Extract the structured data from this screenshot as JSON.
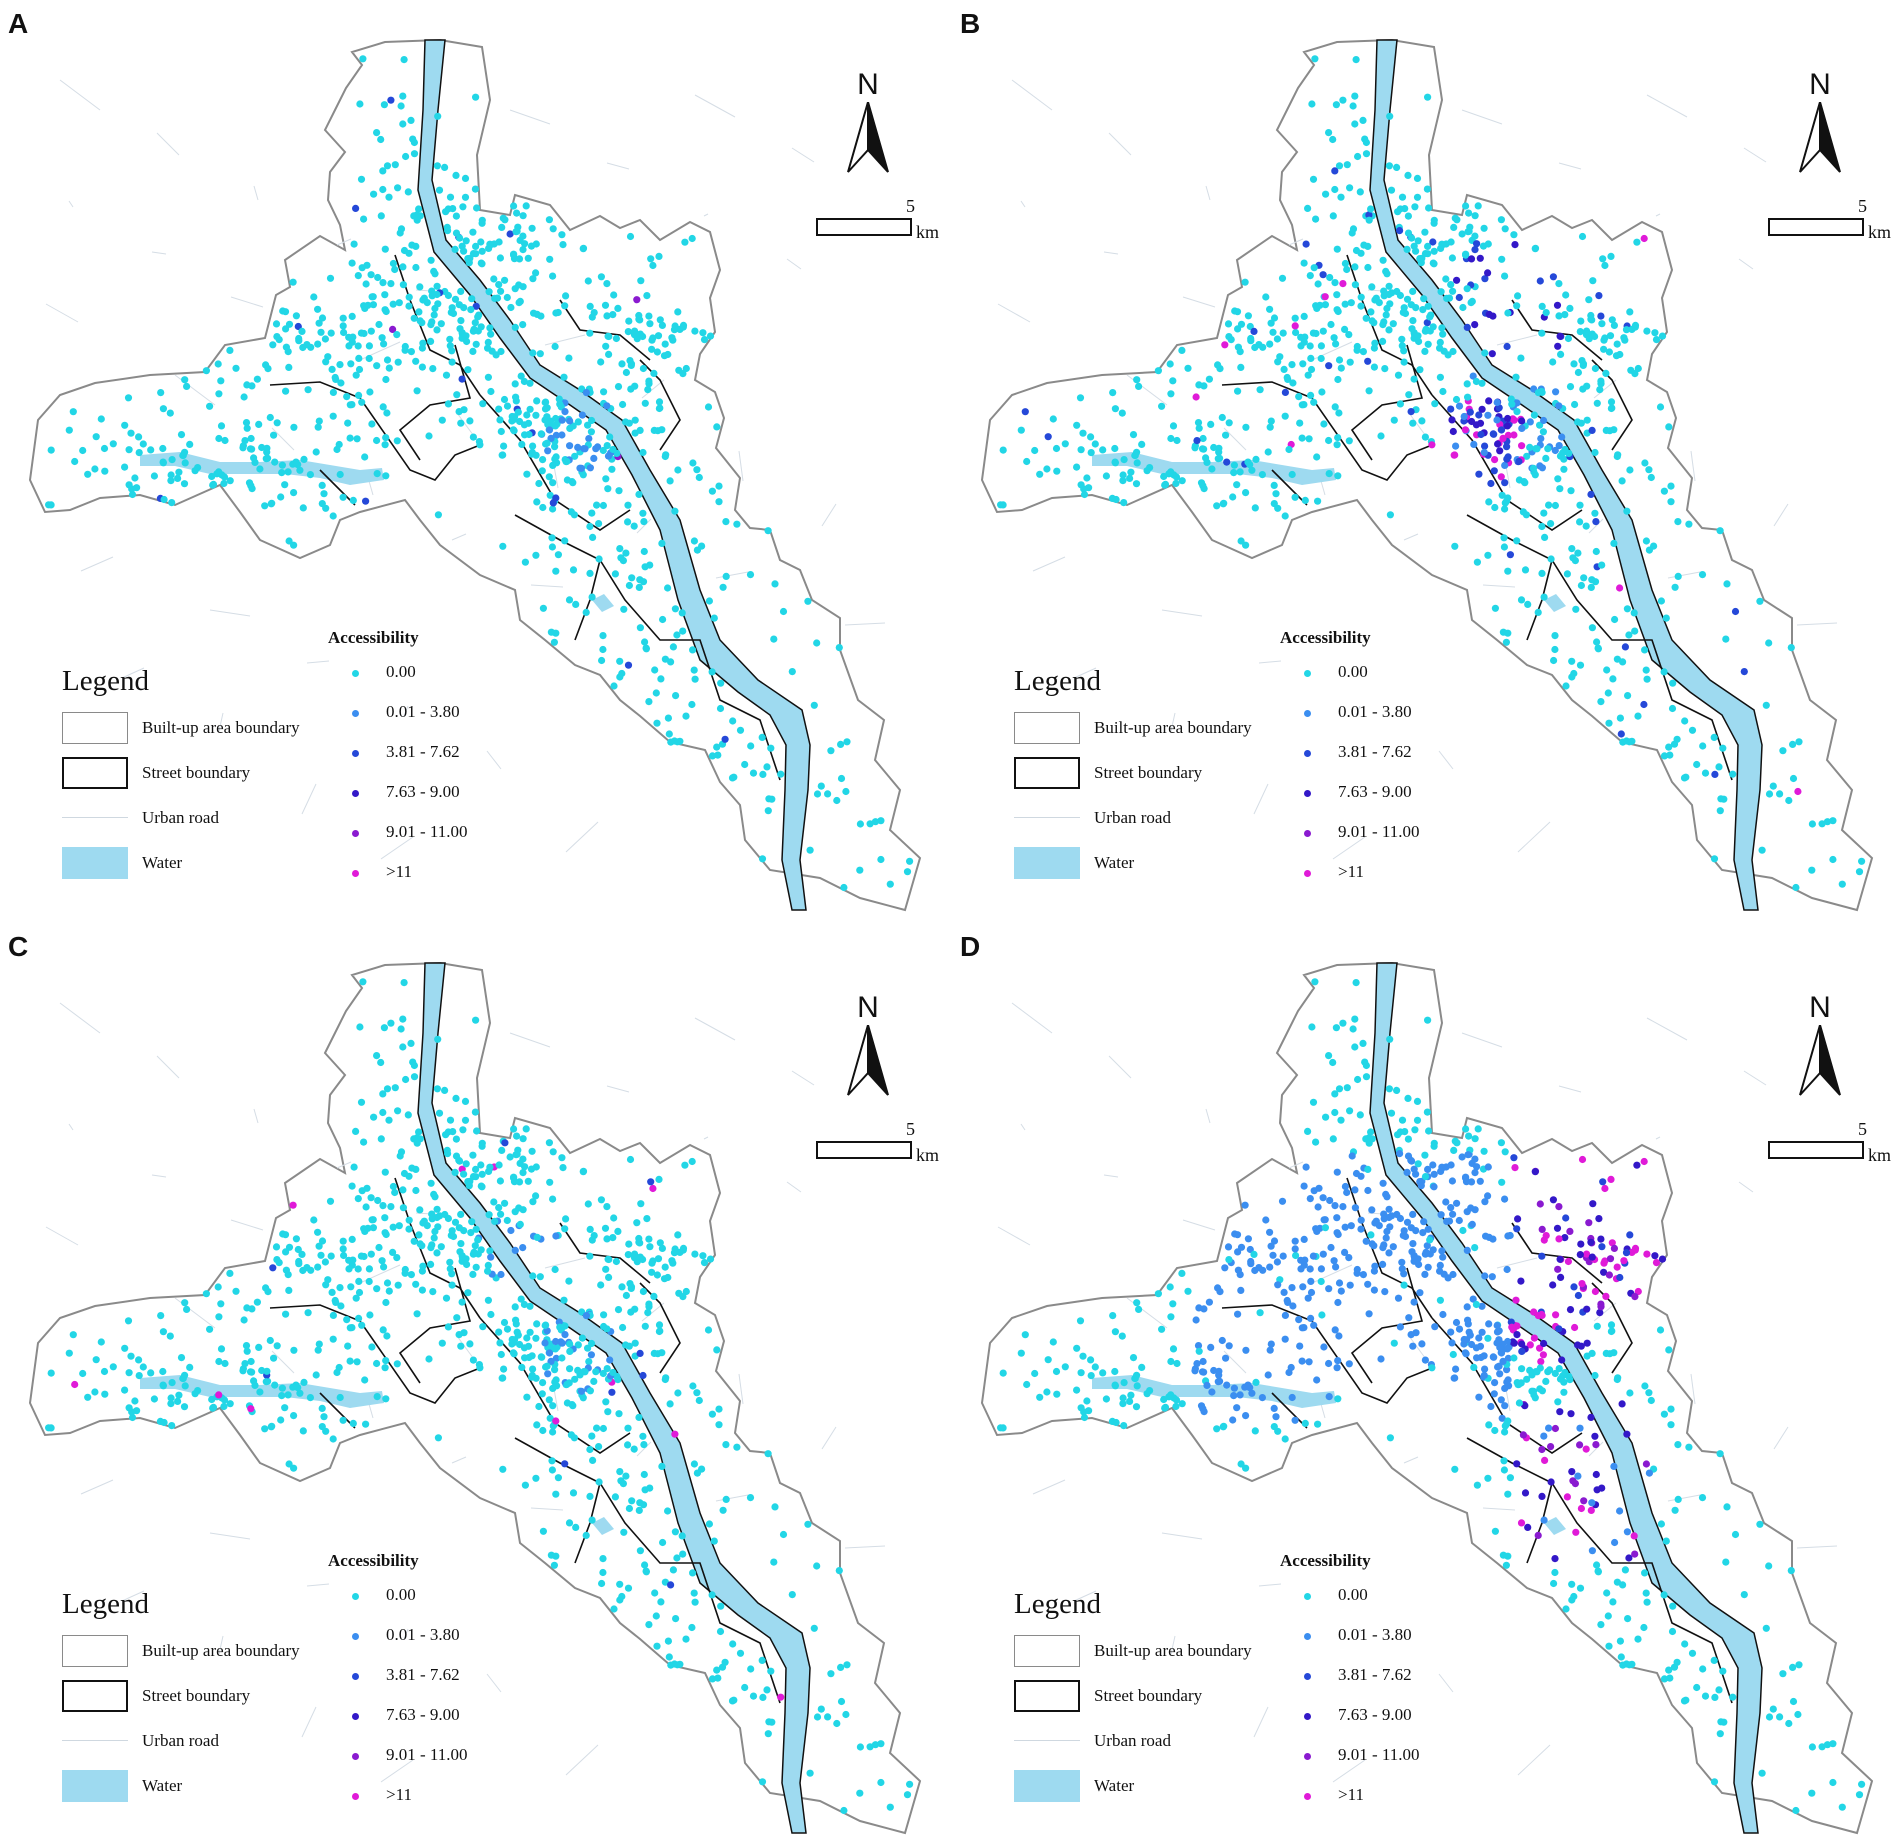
{
  "panels": [
    {
      "letter": "A",
      "scheme": "A"
    },
    {
      "letter": "B",
      "scheme": "B"
    },
    {
      "letter": "C",
      "scheme": "C"
    },
    {
      "letter": "D",
      "scheme": "D"
    }
  ],
  "north_arrow": {
    "label": "N"
  },
  "scale_bar": {
    "value": "5",
    "unit": "km"
  },
  "accessibility_legend": {
    "title": "Accessibility",
    "classes": [
      {
        "label": "0.00",
        "color": "#22d6e6"
      },
      {
        "label": "0.01 - 3.80",
        "color": "#3b8ef0"
      },
      {
        "label": "3.81 - 7.62",
        "color": "#2548d8"
      },
      {
        "label": "7.63 - 9.00",
        "color": "#3318c8"
      },
      {
        "label": "9.01 - 11.00",
        "color": "#8a1ad0"
      },
      {
        "label": ">11",
        "color": "#e01ad8"
      }
    ]
  },
  "map_legend": {
    "title": "Legend",
    "items": [
      {
        "label": "Built-up area boundary",
        "symbol": "built"
      },
      {
        "label": "Street boundary",
        "symbol": "street"
      },
      {
        "label": "Urban road",
        "symbol": "road"
      },
      {
        "label": "Water",
        "symbol": "water"
      }
    ]
  },
  "colors": {
    "water": "#9edaf0",
    "boundary": "#8a8a8a",
    "street": "#111111",
    "road": "#d5dde5"
  }
}
